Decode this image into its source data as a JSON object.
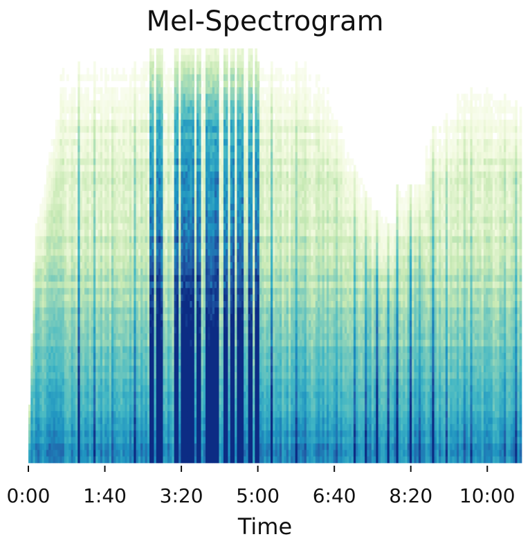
{
  "chart_data": {
    "type": "heatmap",
    "title": "Mel-Spectrogram",
    "xlabel": "Time",
    "ylabel": "",
    "x_axis": {
      "unit": "time (m:ss)",
      "range_seconds": [
        0,
        645
      ],
      "ticks": [
        {
          "label": "0:00",
          "seconds": 0
        },
        {
          "label": "1:40",
          "seconds": 100
        },
        {
          "label": "3:20",
          "seconds": 200
        },
        {
          "label": "5:00",
          "seconds": 300
        },
        {
          "label": "6:40",
          "seconds": 400
        },
        {
          "label": "8:20",
          "seconds": 500
        },
        {
          "label": "10:00",
          "seconds": 600
        }
      ]
    },
    "y_axis": {
      "visible": false,
      "range_relative": [
        0,
        1
      ]
    },
    "colormap": "YlGnBu",
    "colormap_stops": [
      "#ffffff",
      "#f2fadf",
      "#c7e9b4",
      "#7fcdbb",
      "#41b6c4",
      "#1d91c0",
      "#225ea8",
      "#0c2c84"
    ],
    "grid": false,
    "high_energy_bands_seconds": [
      [
        158,
        165
      ],
      [
        168,
        176
      ],
      [
        192,
        196
      ],
      [
        198,
        210
      ],
      [
        212,
        216
      ],
      [
        220,
        226
      ],
      [
        232,
        250
      ],
      [
        254,
        260
      ],
      [
        264,
        270
      ],
      [
        274,
        282
      ],
      [
        288,
        293
      ],
      [
        295,
        301
      ]
    ],
    "quiet_region_top_seconds": [
      [
        395,
        480
      ]
    ],
    "secondary_onsets_seconds": [
      66,
      87,
      111,
      139,
      147,
      318,
      331,
      350,
      363,
      381,
      404,
      427,
      441,
      456,
      470,
      482,
      500,
      511,
      529,
      546,
      571,
      578,
      601,
      622,
      637
    ]
  }
}
